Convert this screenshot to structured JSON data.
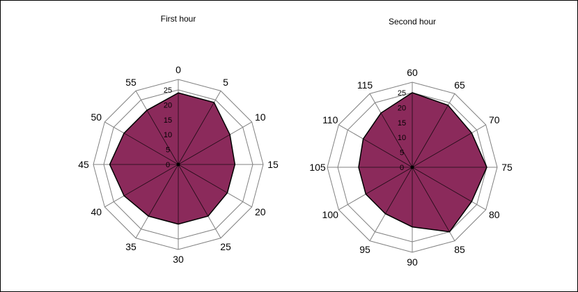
{
  "chart_data": [
    {
      "type": "radar",
      "title": "First hour",
      "categories": [
        "0",
        "5",
        "10",
        "15",
        "20",
        "25",
        "30",
        "35",
        "40",
        "45",
        "50",
        "55"
      ],
      "values": [
        24,
        24,
        20,
        19,
        19,
        20,
        20,
        20,
        21,
        23,
        21,
        21
      ],
      "radial_ticks": [
        "0",
        "5",
        "10",
        "15",
        "20",
        "25"
      ],
      "rlim": [
        0,
        25
      ],
      "fill_color": "#8b2a5b",
      "grid": true
    },
    {
      "type": "radar",
      "title": "Second hour",
      "categories": [
        "60",
        "65",
        "70",
        "75",
        "80",
        "85",
        "90",
        "95",
        "100",
        "105",
        "110",
        "115"
      ],
      "values": [
        25,
        24,
        23,
        25,
        23,
        25,
        20,
        18,
        18,
        18,
        19,
        21
      ],
      "radial_ticks": [
        "0",
        "5",
        "10",
        "15",
        "20",
        "25"
      ],
      "rlim": [
        0,
        25
      ],
      "fill_color": "#8b2a5b",
      "grid": true
    }
  ]
}
